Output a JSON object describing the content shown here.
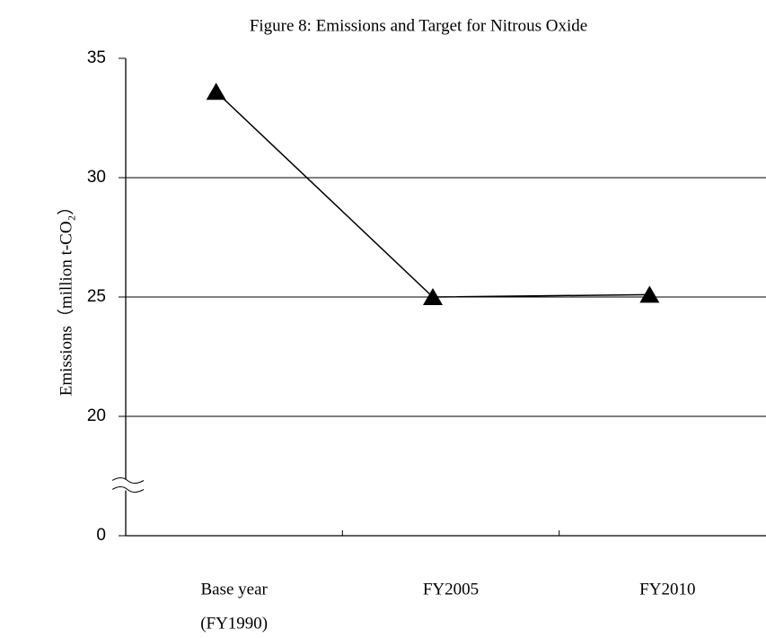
{
  "chart_data": {
    "type": "line",
    "title": "Figure 8: Emissions and Target for Nitrous Oxide",
    "y_label": "Emissions（million t-CO₂）",
    "categories": [
      [
        "Base year",
        "(FY1990)"
      ],
      [
        "FY2005"
      ],
      [
        "FY2010"
      ]
    ],
    "series": [
      {
        "color": "#000000",
        "values": [
          33.6,
          25.0,
          25.1
        ]
      }
    ],
    "ylim": [
      0,
      35
    ],
    "yticks": [
      0,
      20,
      25,
      30,
      35
    ],
    "axis_break": [
      0,
      20
    ],
    "grid": true,
    "marker": "triangle"
  }
}
